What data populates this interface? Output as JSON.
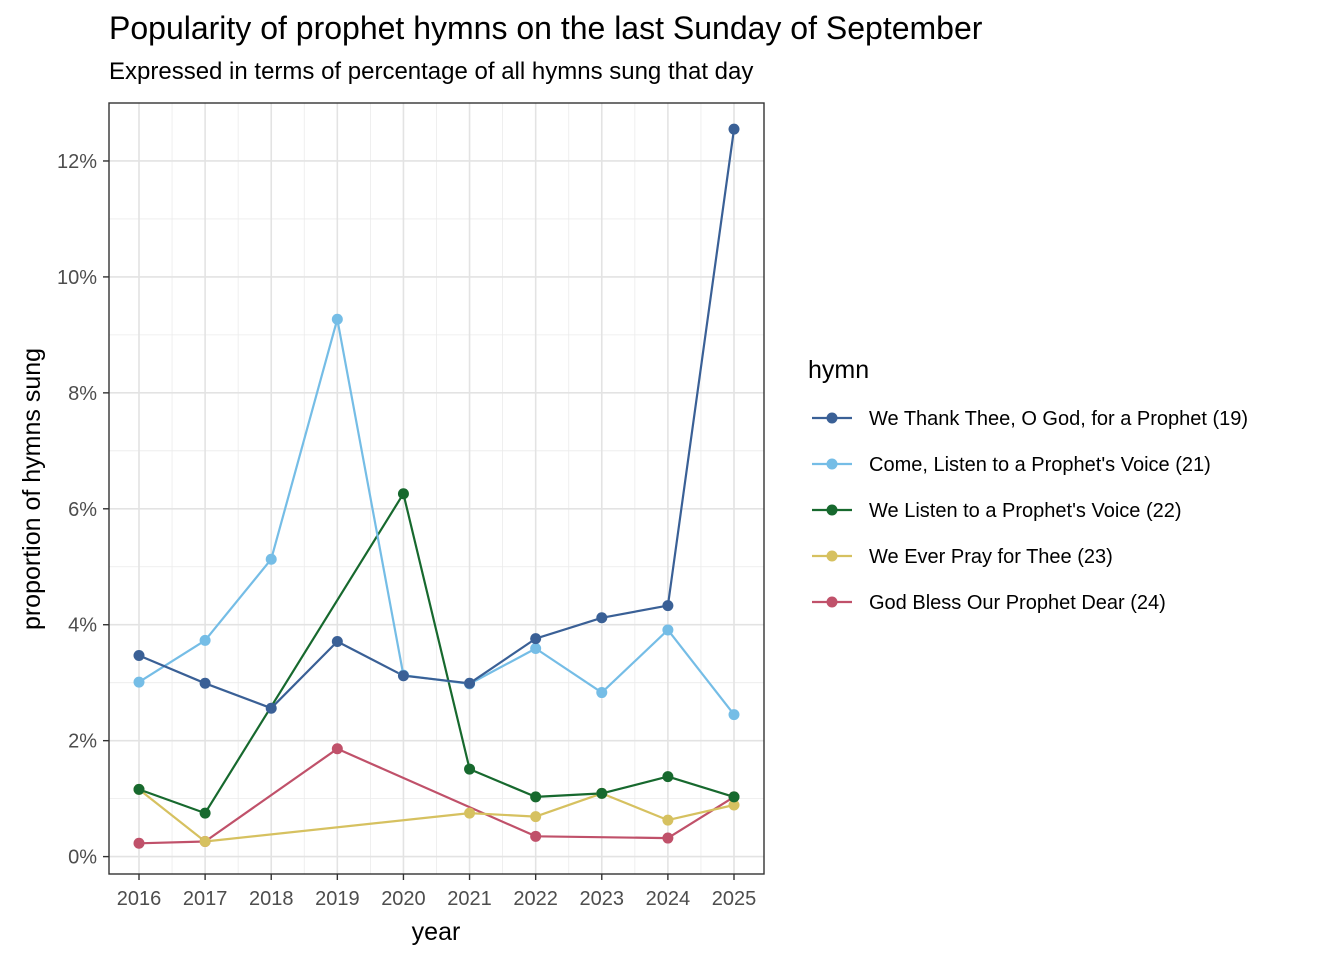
{
  "chart_data": {
    "type": "line",
    "title": "Popularity of prophet hymns on the last Sunday of September",
    "subtitle": "Expressed in terms of percentage of all hymns sung that day",
    "xlabel": "year",
    "ylabel": "proportion of hymns sung",
    "x": [
      2016,
      2017,
      2018,
      2019,
      2020,
      2021,
      2022,
      2023,
      2024,
      2025
    ],
    "xticks": [
      "2016",
      "2017",
      "2018",
      "2019",
      "2020",
      "2021",
      "2022",
      "2023",
      "2024",
      "2025"
    ],
    "yticks": [
      "0%",
      "2%",
      "4%",
      "6%",
      "8%",
      "10%",
      "12%"
    ],
    "ylim": [
      -0.3,
      13.0
    ],
    "grid": true,
    "legend_title": "hymn",
    "legend_position": "right",
    "series": [
      {
        "name": "We Thank Thee, O God, for a Prophet (19)",
        "color": "#3a6096",
        "x": [
          2016,
          2017,
          2018,
          2019,
          2020,
          2021,
          2022,
          2023,
          2024,
          2025
        ],
        "values": [
          3.47,
          2.99,
          2.56,
          3.71,
          3.12,
          2.99,
          3.76,
          4.12,
          4.33,
          12.55
        ]
      },
      {
        "name": "Come, Listen to a Prophet's Voice (21)",
        "color": "#75bde6",
        "x": [
          2016,
          2017,
          2018,
          2019,
          2020,
          2021,
          2022,
          2023,
          2024,
          2025
        ],
        "values": [
          3.01,
          3.73,
          5.13,
          9.27,
          3.13,
          2.98,
          3.59,
          2.83,
          3.91,
          2.45
        ]
      },
      {
        "name": "We Listen to a Prophet's Voice (22)",
        "color": "#17692e",
        "x": [
          2016,
          2017,
          2020,
          2021,
          2022,
          2023,
          2024,
          2025
        ],
        "values": [
          1.16,
          0.75,
          6.26,
          1.51,
          1.03,
          1.09,
          1.38,
          1.03
        ]
      },
      {
        "name": "We Ever Pray for Thee (23)",
        "color": "#d6c160",
        "x": [
          2016,
          2017,
          2021,
          2022,
          2023,
          2024,
          2025
        ],
        "values": [
          1.16,
          0.26,
          0.75,
          0.69,
          1.09,
          0.63,
          0.89
        ]
      },
      {
        "name": "God Bless Our Prophet Dear (24)",
        "color": "#c0516a",
        "x": [
          2016,
          2017,
          2019,
          2022,
          2024,
          2025
        ],
        "values": [
          0.23,
          0.26,
          1.86,
          0.35,
          0.32,
          1.03
        ]
      }
    ]
  }
}
